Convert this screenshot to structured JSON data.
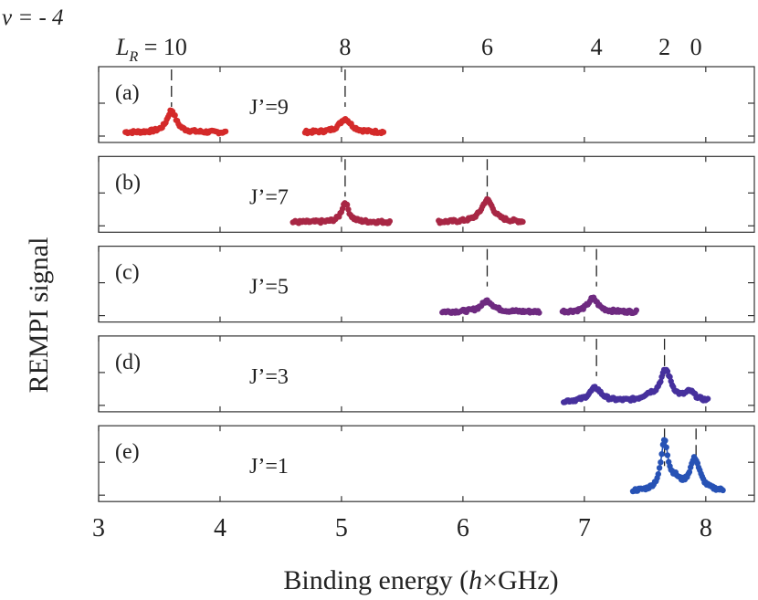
{
  "chart_data": {
    "type": "scatter",
    "figure_label": "v = - 4",
    "top_axis": {
      "label_symbol": "L",
      "label_subscript": "R",
      "label_suffix": " = 10",
      "ticks": [
        {
          "x": 3.6,
          "label": ""
        },
        {
          "x": 5.03,
          "label": "8"
        },
        {
          "x": 6.2,
          "label": "6"
        },
        {
          "x": 7.1,
          "label": "4"
        },
        {
          "x": 7.66,
          "label": "2"
        },
        {
          "x": 7.92,
          "label": "0"
        }
      ]
    },
    "xlabel_prefix": "Binding energy (",
    "xlabel_italic": "h",
    "xlabel_suffix": "×GHz)",
    "ylabel": "REMPI signal",
    "xlim": [
      3.0,
      8.4
    ],
    "x_ticks": [
      "3",
      "4",
      "5",
      "6",
      "7",
      "8"
    ],
    "x_tick_values": [
      3,
      4,
      5,
      6,
      7,
      8
    ],
    "panels": [
      {
        "tag": "(a)",
        "label": "J’=9",
        "color": "#d42a2a",
        "clusters": [
          [
            3.22,
            4.05
          ],
          [
            4.7,
            5.35
          ]
        ],
        "peaks": [
          {
            "x": 3.6,
            "h": 0.9,
            "w": 0.045
          },
          {
            "x": 5.03,
            "h": 0.55,
            "w": 0.06
          }
        ],
        "dashes": [
          3.6,
          5.03
        ]
      },
      {
        "tag": "(b)",
        "label": "J’=7",
        "color": "#a82745",
        "clusters": [
          [
            4.6,
            5.4
          ],
          [
            5.8,
            6.5
          ]
        ],
        "peaks": [
          {
            "x": 5.03,
            "h": 0.8,
            "w": 0.035
          },
          {
            "x": 6.2,
            "h": 0.9,
            "w": 0.06
          }
        ],
        "dashes": [
          5.03,
          6.2
        ]
      },
      {
        "tag": "(c)",
        "label": "J’=5",
        "color": "#6e2a80",
        "clusters": [
          [
            5.83,
            6.63
          ],
          [
            6.82,
            7.43
          ]
        ],
        "peaks": [
          {
            "x": 6.2,
            "h": 0.45,
            "w": 0.06
          },
          {
            "x": 7.07,
            "h": 0.55,
            "w": 0.05
          }
        ],
        "dashes": [
          6.2,
          7.1
        ]
      },
      {
        "tag": "(d)",
        "label": "J’=3",
        "color": "#46309d",
        "clusters": [
          [
            6.83,
            8.02
          ]
        ],
        "peaks": [
          {
            "x": 7.09,
            "h": 0.55,
            "w": 0.06
          },
          {
            "x": 7.67,
            "h": 1.25,
            "w": 0.055
          },
          {
            "x": 7.53,
            "h": 0.2,
            "w": 0.06
          },
          {
            "x": 7.87,
            "h": 0.35,
            "w": 0.05
          }
        ],
        "dashes": [
          7.1,
          7.66
        ]
      },
      {
        "tag": "(e)",
        "label": "J’=1",
        "color": "#2752b5",
        "clusters": [
          [
            7.4,
            8.15
          ]
        ],
        "peaks": [
          {
            "x": 7.66,
            "h": 2.0,
            "w": 0.035
          },
          {
            "x": 7.91,
            "h": 1.3,
            "w": 0.05
          },
          {
            "x": 7.75,
            "h": 0.35,
            "w": 0.05
          }
        ],
        "dashes": [
          7.66,
          7.92
        ],
        "fit_line": true
      }
    ]
  }
}
